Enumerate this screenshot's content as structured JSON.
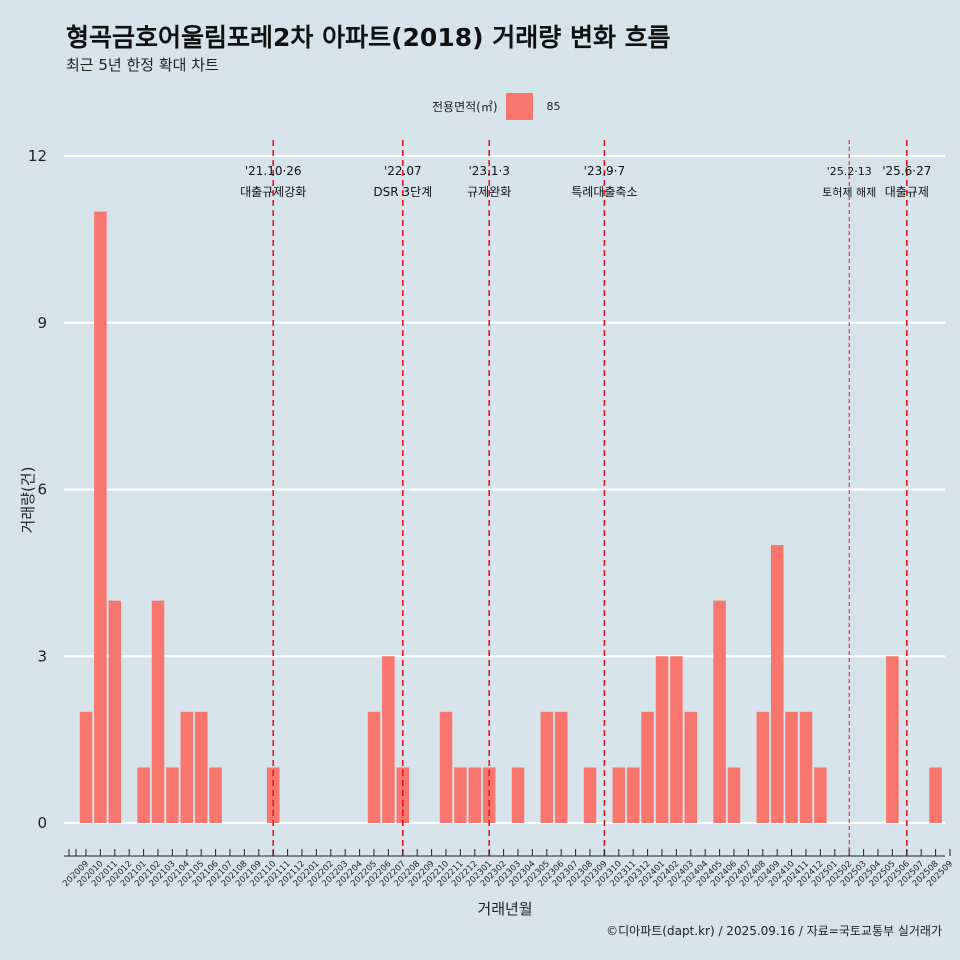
{
  "title": "형곡금호어울림포레2차 아파트(2018) 거래량 변화 흐름",
  "subtitle": "최근 5년 한정 확대 차트",
  "legend": {
    "title": "전용면적(㎡)",
    "item": "85",
    "color": "#f8766d"
  },
  "caption": "©디아파트(dapt.kr) / 2025.09.16 / 자료=국토교통부 실거래가",
  "chart_data": {
    "type": "bar",
    "xlabel": "거래년월",
    "ylabel": "거래량(건)",
    "ylim": [
      0,
      12
    ],
    "yticks": [
      0,
      3,
      6,
      9,
      12
    ],
    "grid": true,
    "legend_position": "top",
    "categories": [
      "202009",
      "202010",
      "202011",
      "202012",
      "202101",
      "202102",
      "202103",
      "202104",
      "202105",
      "202106",
      "202107",
      "202108",
      "202109",
      "202110",
      "202111",
      "202112",
      "202201",
      "202202",
      "202203",
      "202204",
      "202205",
      "202206",
      "202207",
      "202208",
      "202209",
      "202210",
      "202211",
      "202212",
      "202301",
      "202302",
      "202303",
      "202304",
      "202305",
      "202306",
      "202307",
      "202308",
      "202309",
      "202310",
      "202311",
      "202312",
      "202401",
      "202402",
      "202403",
      "202404",
      "202405",
      "202406",
      "202407",
      "202408",
      "202409",
      "202410",
      "202411",
      "202412",
      "202501",
      "202502",
      "202503",
      "202504",
      "202505",
      "202506",
      "202507",
      "202508",
      "202509"
    ],
    "series": [
      {
        "name": "85",
        "color": "#f8766d",
        "values": [
          2,
          11,
          4,
          0,
          1,
          4,
          1,
          2,
          2,
          1,
          0,
          0,
          0,
          1,
          0,
          0,
          0,
          0,
          0,
          0,
          2,
          3,
          1,
          0,
          0,
          2,
          1,
          1,
          1,
          0,
          1,
          0,
          2,
          2,
          0,
          1,
          0,
          1,
          1,
          2,
          3,
          3,
          2,
          0,
          4,
          1,
          0,
          2,
          5,
          2,
          2,
          1,
          0,
          0,
          0,
          0,
          3,
          0,
          0,
          1,
          0
        ]
      }
    ],
    "annotations": [
      {
        "category": "202110",
        "date": "'21.10·26",
        "label": "대출규제강화",
        "style": "major"
      },
      {
        "category": "202207",
        "date": "'22.07",
        "label": "DSR 3단계",
        "style": "major"
      },
      {
        "category": "202301",
        "date": "'23.1·3",
        "label": "규제완화",
        "style": "major"
      },
      {
        "category": "202309",
        "date": "'23.9·7",
        "label": "특례대출축소",
        "style": "major"
      },
      {
        "category": "202502",
        "date": "'25.2·13",
        "label": "토허제 해제",
        "style": "minor"
      },
      {
        "category": "202506",
        "date": "'25.6·27",
        "label": "대출규제",
        "style": "major"
      }
    ]
  }
}
